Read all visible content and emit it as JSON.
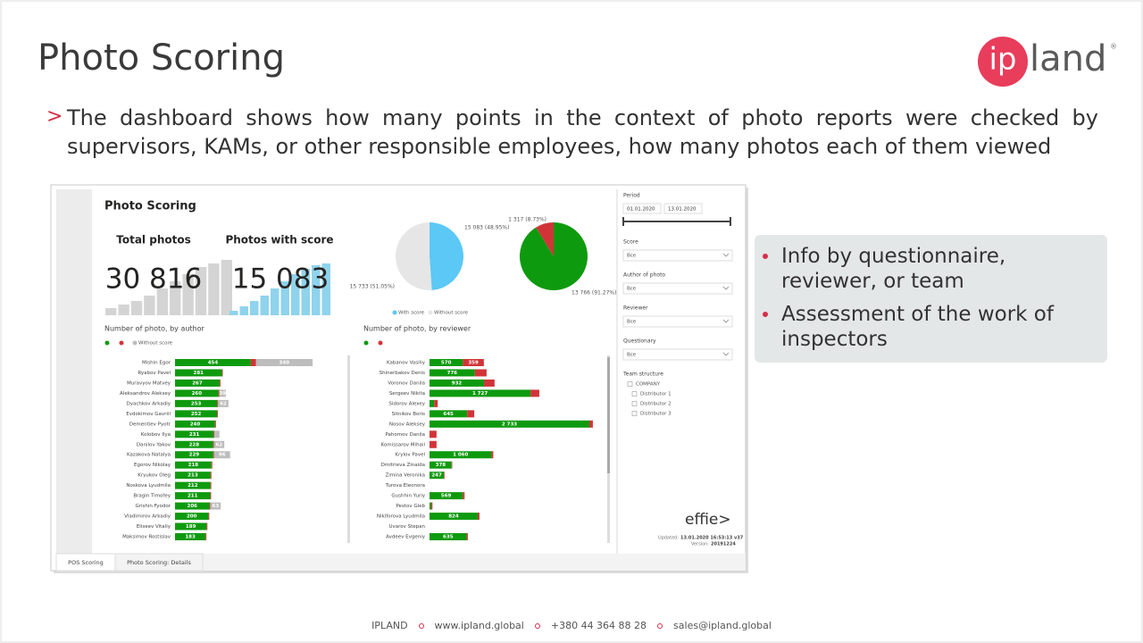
{
  "slide": {
    "title": "Photo Scoring",
    "logo": {
      "ip": "ip",
      "land": "land",
      "mark": "®"
    },
    "intro_marker": ">",
    "intro": "The dashboard shows how many points in the context of photo reports were checked by supervisors, KAMs, or other responsible employees, how many photos each of them viewed",
    "bullets": [
      "Info by questionnaire, reviewer, or team",
      "Assessment of the work of inspectors"
    ],
    "footer": [
      "IPLAND",
      "www.ipland.global",
      "+380 44 364 88 28",
      "sales@ipland.global"
    ]
  },
  "dashboard": {
    "title": "Photo Scoring",
    "kpis": [
      {
        "label": "Total photos",
        "value": 30816,
        "value_label": "30 816",
        "color": "#d4d4d4",
        "spark": [
          8,
          12,
          16,
          22,
          30,
          38,
          46,
          54,
          58,
          62
        ],
        "spark_lim": [
          0,
          62
        ]
      },
      {
        "label": "Photos with score",
        "value": 15083,
        "value_label": "15 083",
        "color": "#8fd3ec",
        "spark": [
          5,
          10,
          16,
          22,
          30,
          38,
          46,
          52,
          56,
          58
        ],
        "spark_lim": [
          0,
          62
        ]
      }
    ],
    "pie_score": {
      "values": [
        15083,
        15733
      ],
      "value_labels": [
        "15 083 (48.95%)",
        "15 733 (51.05%)"
      ],
      "colors": [
        "#5bc8f5",
        "#e6e6e6"
      ],
      "legend": [
        "With score",
        "Without score"
      ]
    },
    "pie_rating": {
      "values": [
        13766,
        1317
      ],
      "value_labels": [
        "13 766 (91.27%)",
        "1 317 (8.73%)"
      ],
      "colors": [
        "#0e9a0e",
        "#d13438"
      ]
    },
    "by_author": {
      "title": "Number of photo, by author",
      "legend": "Without score",
      "categories": [
        "Mishin Egor",
        "Ryabov Pavel",
        "Muravyov Matvey",
        "Aleksandrov Aleksey",
        "Dyachkov Arkadiy",
        "Evdokimov Gavriil",
        "Dementiev Pyotr",
        "Kolobov Ilya",
        "Danilov Yakov",
        "Kazakova Natalya",
        "Egorov Nikolay",
        "Kryukov Oleg",
        "Noskova Lyudmila",
        "Bragin Timofey",
        "Grishin Fyodor",
        "Vladimirov Arkadiy",
        "Eliseev Vitaliy",
        "Maksimov Rostislav"
      ],
      "series": [
        {
          "color": "#0e9a0e",
          "values": [
            454,
            281,
            267,
            260,
            253,
            252,
            240,
            231,
            228,
            229,
            218,
            213,
            212,
            211,
            206,
            200,
            189,
            183
          ],
          "value_labels": [
            "454",
            "281",
            "267",
            "260",
            "253",
            "252",
            "240",
            "231",
            "228",
            "229",
            "218",
            "213",
            "212",
            "211",
            "206",
            "200",
            "189",
            "183"
          ]
        },
        {
          "color": "#d13438",
          "values": [
            30,
            5,
            5,
            5,
            5,
            5,
            5,
            5,
            5,
            5,
            5,
            5,
            5,
            5,
            5,
            5,
            5,
            5
          ],
          "value_labels": [
            null,
            null,
            null,
            null,
            null,
            null,
            null,
            null,
            null,
            null,
            null,
            null,
            null,
            null,
            null,
            null,
            null,
            null
          ]
        },
        {
          "color": "#bdbdbd",
          "values": [
            340,
            null,
            null,
            39,
            62,
            null,
            null,
            30,
            62,
            96,
            null,
            null,
            null,
            null,
            63,
            null,
            null,
            null
          ],
          "value_labels": [
            "340",
            null,
            null,
            "39",
            "62",
            null,
            null,
            null,
            "62",
            "96",
            null,
            null,
            null,
            null,
            "63",
            null,
            null,
            null
          ]
        }
      ]
    },
    "by_reviewer": {
      "title": "Number of photo, by reviewer",
      "categories": [
        "Kabanov Vasiliy",
        "Shinerbakov Denis",
        "Voronov Danila",
        "Sergeev Nikita",
        "Sidorov Alexey",
        "Sitnikov Boris",
        "Nosov Aleksey",
        "Pahomov Danila",
        "Komissarov Mihail",
        "Krylov Pavel",
        "Dmitrieva Zinaida",
        "Zimina Veronika",
        "Turova Eleonora",
        "Gushhin Yuriy",
        "Pestov Gleb",
        "Nikiforova Lyudmila",
        "Uvarov Stepan",
        "Avdeev Evgeniy"
      ],
      "series": [
        {
          "color": "#0e9a0e",
          "values": [
            570,
            776,
            932,
            1727,
            80,
            645,
            2733,
            null,
            null,
            1060,
            378,
            247,
            null,
            569,
            30,
            824,
            null,
            635
          ],
          "value_labels": [
            "570",
            "776",
            "932",
            "1 727",
            null,
            "645",
            "2 733",
            null,
            null,
            "1 060",
            "378",
            "247",
            null,
            "569",
            null,
            "824",
            null,
            "635"
          ]
        },
        {
          "color": "#d13438",
          "values": [
            359,
            200,
            180,
            150,
            60,
            120,
            60,
            120,
            120,
            30,
            10,
            10,
            null,
            30,
            20,
            30,
            null,
            20
          ],
          "value_labels": [
            "359",
            null,
            null,
            null,
            null,
            null,
            null,
            null,
            null,
            null,
            null,
            null,
            null,
            null,
            null,
            null,
            null,
            null
          ]
        }
      ]
    },
    "filters": {
      "period": "Period",
      "date_from": "01.01.2020",
      "date_to": "13.01.2020",
      "dropdowns": [
        {
          "label": "Score",
          "value": "Все"
        },
        {
          "label": "Author of photo",
          "value": "Все"
        },
        {
          "label": "Reviewer",
          "value": "Все"
        },
        {
          "label": "Questionary",
          "value": "Все"
        }
      ],
      "team_title": "Team structure",
      "team": [
        "COMPANY",
        "Distributor 1",
        "Distributor 2",
        "Distributor 3"
      ]
    },
    "brand": "effie>",
    "updated_label": "Updated:",
    "updated": "13.01.2020 16:53:13 v37",
    "version_label": "Version:",
    "version": "20191224",
    "tabs": [
      "POS Scoring",
      "Photo Scoring: Details"
    ]
  }
}
